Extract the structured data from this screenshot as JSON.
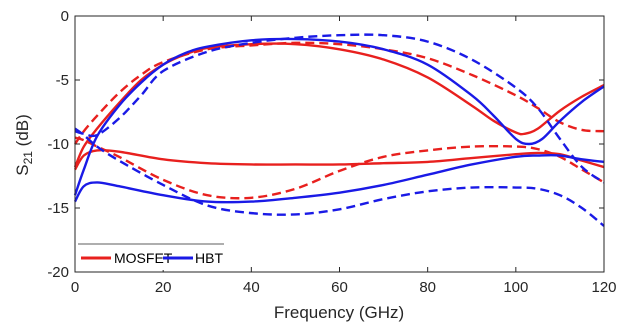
{
  "chart_data": {
    "type": "line",
    "title": "",
    "xlabel": "Frequency (GHz)",
    "ylabel": {
      "main": "S",
      "sub": "21",
      "unit": " (dB)"
    },
    "xlim": [
      0,
      120
    ],
    "ylim": [
      -20,
      0
    ],
    "xticks": [
      "0",
      "20",
      "40",
      "60",
      "80",
      "100",
      "120"
    ],
    "yticks": [
      "0",
      "-5",
      "-10",
      "-15",
      "-20"
    ],
    "xtick_values": [
      0,
      20,
      40,
      60,
      80,
      100,
      120
    ],
    "ytick_values": [
      0,
      -5,
      -10,
      -15,
      -20
    ],
    "grid": false,
    "legend": {
      "placement": "bottom-left",
      "entries": [
        "MOSFET",
        "HBT"
      ]
    },
    "colors": {
      "MOSFET": "#e8201e",
      "HBT": "#1a1ae6"
    },
    "series": [
      {
        "name": "MOSFET",
        "style": "solid",
        "x": [
          0,
          2,
          5,
          10,
          15,
          20,
          25,
          30,
          40,
          50,
          60,
          70,
          80,
          90,
          95,
          100,
          102,
          105,
          110,
          115,
          120
        ],
        "y": [
          -11.8,
          -10.2,
          -8.8,
          -6.8,
          -5.0,
          -3.8,
          -3.0,
          -2.5,
          -2.2,
          -2.2,
          -2.6,
          -3.4,
          -4.8,
          -7.0,
          -8.2,
          -9.1,
          -9.2,
          -8.8,
          -7.4,
          -6.3,
          -5.4
        ]
      },
      {
        "name": "MOSFET",
        "style": "solid",
        "x": [
          0,
          2,
          5,
          10,
          20,
          30,
          40,
          50,
          60,
          70,
          80,
          90,
          100,
          105,
          110,
          115,
          120
        ],
        "y": [
          -12.0,
          -10.9,
          -10.5,
          -10.6,
          -11.2,
          -11.5,
          -11.6,
          -11.6,
          -11.6,
          -11.5,
          -11.4,
          -11.1,
          -10.8,
          -10.7,
          -10.8,
          -11.3,
          -11.8
        ]
      },
      {
        "name": "MOSFET",
        "style": "dashed",
        "x": [
          0,
          2,
          5,
          10,
          15,
          20,
          30,
          40,
          50,
          60,
          70,
          80,
          90,
          100,
          105,
          110,
          115,
          120
        ],
        "y": [
          -10.0,
          -9.0,
          -7.8,
          -6.0,
          -4.6,
          -3.6,
          -2.6,
          -2.3,
          -2.1,
          -2.2,
          -2.6,
          -3.3,
          -4.6,
          -6.2,
          -7.2,
          -8.3,
          -8.9,
          -9.0
        ]
      },
      {
        "name": "MOSFET",
        "style": "dashed",
        "x": [
          0,
          2,
          5,
          10,
          20,
          30,
          40,
          50,
          60,
          70,
          80,
          90,
          100,
          105,
          110,
          115,
          120
        ],
        "y": [
          -9.5,
          -9.7,
          -10.2,
          -11.0,
          -12.8,
          -14.0,
          -14.2,
          -13.5,
          -12.1,
          -11.0,
          -10.5,
          -10.2,
          -10.2,
          -10.4,
          -11.0,
          -12.0,
          -13.0
        ]
      },
      {
        "name": "HBT",
        "style": "solid",
        "x": [
          0,
          2,
          5,
          10,
          15,
          20,
          25,
          30,
          40,
          50,
          60,
          70,
          80,
          90,
          95,
          100,
          103,
          106,
          110,
          115,
          120
        ],
        "y": [
          -14.0,
          -12.0,
          -9.4,
          -7.0,
          -5.2,
          -3.8,
          -2.9,
          -2.4,
          -1.9,
          -1.8,
          -2.0,
          -2.6,
          -3.8,
          -6.2,
          -7.8,
          -9.6,
          -10.0,
          -9.6,
          -8.2,
          -6.7,
          -5.5
        ]
      },
      {
        "name": "HBT",
        "style": "solid",
        "x": [
          0,
          2,
          5,
          10,
          20,
          30,
          40,
          50,
          60,
          70,
          80,
          90,
          100,
          105,
          110,
          115,
          120
        ],
        "y": [
          -14.5,
          -13.3,
          -13.0,
          -13.3,
          -14.0,
          -14.5,
          -14.5,
          -14.2,
          -13.8,
          -13.2,
          -12.4,
          -11.6,
          -11.0,
          -10.9,
          -10.9,
          -11.2,
          -11.4
        ]
      },
      {
        "name": "HBT",
        "style": "dashed",
        "x": [
          0,
          2,
          5,
          10,
          15,
          20,
          30,
          40,
          50,
          60,
          70,
          80,
          90,
          100,
          105,
          110,
          115,
          120
        ],
        "y": [
          -9.0,
          -9.2,
          -9.3,
          -8.0,
          -6.2,
          -4.3,
          -2.8,
          -2.1,
          -1.7,
          -1.5,
          -1.5,
          -2.0,
          -3.4,
          -5.6,
          -7.2,
          -9.6,
          -11.8,
          -13.0
        ]
      },
      {
        "name": "HBT",
        "style": "dashed",
        "x": [
          0,
          2,
          5,
          10,
          20,
          30,
          40,
          50,
          60,
          70,
          80,
          90,
          100,
          105,
          110,
          115,
          120
        ],
        "y": [
          -8.8,
          -9.3,
          -10.2,
          -11.3,
          -13.2,
          -14.8,
          -15.4,
          -15.5,
          -15.1,
          -14.3,
          -13.7,
          -13.4,
          -13.4,
          -13.5,
          -14.0,
          -15.0,
          -16.4
        ]
      }
    ]
  }
}
